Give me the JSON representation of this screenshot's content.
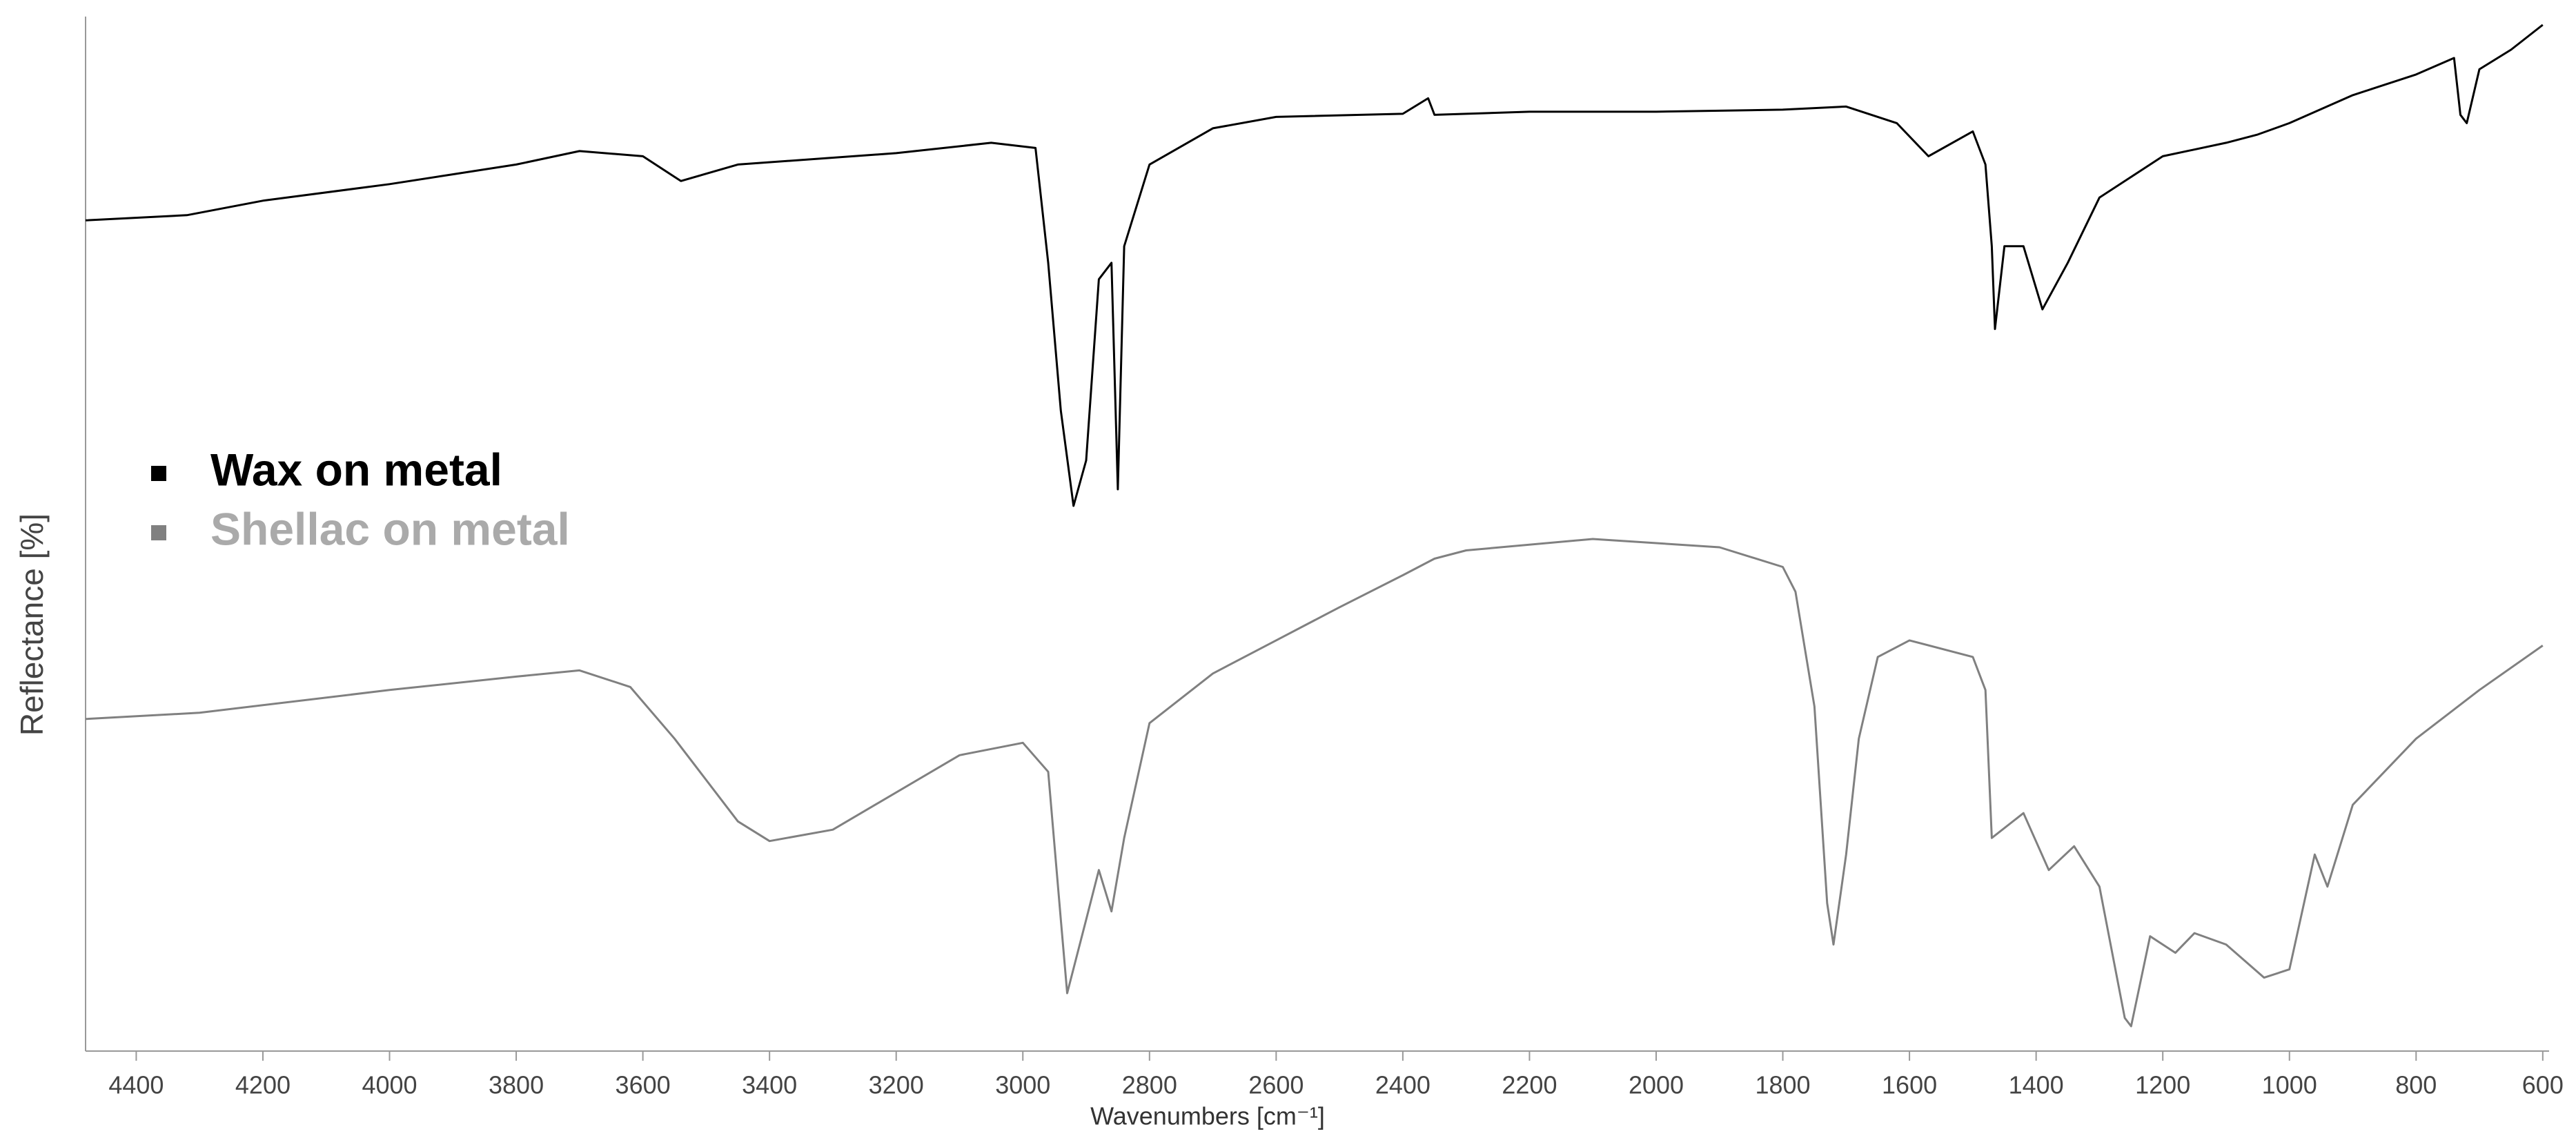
{
  "chart_data": {
    "type": "line",
    "xlabel": "Wavenumbers [cm⁻¹]",
    "ylabel": "Reflectance [%]",
    "xlim": [
      4480,
      590
    ],
    "xticks": [
      4400,
      4200,
      4000,
      3800,
      3600,
      3400,
      3200,
      3000,
      2800,
      2600,
      2400,
      2200,
      2000,
      1800,
      1600,
      1400,
      1200,
      1000,
      800,
      600
    ],
    "ylim": [
      0,
      100
    ],
    "legend": "upper left",
    "series": [
      {
        "name": "Wax on metal",
        "color": "#000000",
        "x": [
          4480,
          4320,
          4200,
          4000,
          3800,
          3700,
          3600,
          3540,
          3450,
          3200,
          3050,
          2980,
          2960,
          2940,
          2920,
          2900,
          2880,
          2860,
          2850,
          2840,
          2800,
          2700,
          2600,
          2400,
          2360,
          2350,
          2200,
          2000,
          1800,
          1700,
          1620,
          1570,
          1500,
          1480,
          1470,
          1465,
          1450,
          1420,
          1390,
          1350,
          1300,
          1200,
          1100,
          1050,
          1000,
          900,
          800,
          740,
          730,
          720,
          700,
          650,
          600
        ],
        "values": [
          80.3,
          80.8,
          82.2,
          83.8,
          85.7,
          87.0,
          86.5,
          84.1,
          85.7,
          86.8,
          87.8,
          87.3,
          76.2,
          61.9,
          52.7,
          57.1,
          74.6,
          76.2,
          54.3,
          77.8,
          85.7,
          89.2,
          90.3,
          90.6,
          92.1,
          90.5,
          90.8,
          90.8,
          91.0,
          91.3,
          89.7,
          86.5,
          88.9,
          85.7,
          77.8,
          69.8,
          77.8,
          77.8,
          71.7,
          76.2,
          82.5,
          86.5,
          87.8,
          88.6,
          89.7,
          92.4,
          94.4,
          96.0,
          90.5,
          89.7,
          94.9,
          96.8,
          99.2
        ]
      },
      {
        "name": "Shellac on metal",
        "color": "#808080",
        "x": [
          4480,
          4300,
          4000,
          3800,
          3700,
          3620,
          3550,
          3450,
          3400,
          3300,
          3100,
          3000,
          2960,
          2940,
          2930,
          2900,
          2880,
          2860,
          2840,
          2800,
          2700,
          2600,
          2500,
          2400,
          2350,
          2300,
          2100,
          1900,
          1800,
          1780,
          1750,
          1730,
          1720,
          1700,
          1680,
          1650,
          1600,
          1500,
          1480,
          1470,
          1420,
          1380,
          1340,
          1300,
          1260,
          1250,
          1220,
          1180,
          1150,
          1100,
          1040,
          1000,
          960,
          940,
          900,
          800,
          700,
          600
        ],
        "values": [
          32.1,
          32.7,
          34.9,
          36.2,
          36.8,
          35.2,
          30.2,
          22.2,
          20.3,
          21.4,
          28.6,
          29.8,
          27.0,
          12.7,
          5.6,
          12.7,
          17.5,
          13.5,
          20.6,
          31.7,
          36.5,
          39.7,
          42.9,
          46.0,
          47.6,
          48.4,
          49.5,
          48.7,
          46.8,
          44.4,
          33.3,
          14.3,
          10.3,
          19.0,
          30.2,
          38.1,
          39.7,
          38.1,
          34.9,
          20.6,
          23.0,
          17.5,
          19.8,
          15.9,
          3.2,
          2.4,
          11.1,
          9.5,
          11.4,
          10.3,
          7.1,
          7.9,
          19.0,
          15.9,
          23.8,
          30.2,
          34.9,
          39.2
        ]
      }
    ]
  }
}
